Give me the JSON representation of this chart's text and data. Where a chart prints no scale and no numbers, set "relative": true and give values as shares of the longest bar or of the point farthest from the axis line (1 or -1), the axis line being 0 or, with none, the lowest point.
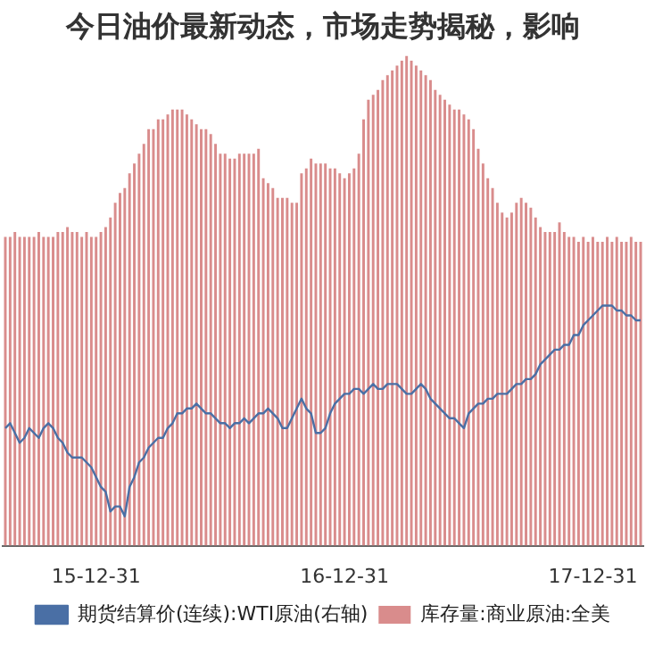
{
  "chart_data": {
    "type": "bar",
    "title": "今日油价最新动态，市场走势揭秘，影响",
    "relative": true,
    "grid": false,
    "legend": "bottom",
    "marker": "none",
    "categories": [
      null,
      null,
      null,
      null,
      null,
      null,
      null,
      null,
      null,
      null,
      null,
      null,
      null,
      null,
      null,
      null,
      null,
      null,
      null,
      "15-12-31",
      null,
      null,
      null,
      null,
      null,
      null,
      null,
      null,
      null,
      null,
      null,
      null,
      null,
      null,
      null,
      null,
      null,
      null,
      null,
      null,
      null,
      null,
      null,
      null,
      null,
      null,
      null,
      null,
      null,
      null,
      null,
      null,
      null,
      null,
      null,
      null,
      null,
      null,
      null,
      null,
      null,
      null,
      null,
      null,
      null,
      null,
      null,
      null,
      null,
      null,
      null,
      "16-12-31",
      null,
      null,
      null,
      null,
      null,
      null,
      null,
      null,
      null,
      null,
      null,
      null,
      null,
      null,
      null,
      null,
      null,
      null,
      null,
      null,
      null,
      null,
      null,
      null,
      null,
      null,
      null,
      null,
      null,
      null,
      null,
      null,
      null,
      null,
      null,
      null,
      null,
      null,
      null,
      null,
      null,
      null,
      null,
      null,
      null,
      null,
      null,
      null,
      null,
      null,
      null,
      "17-12-31",
      null,
      null,
      null,
      null,
      null,
      null,
      null,
      null,
      null,
      null
    ],
    "series": [
      {
        "name": "期货结算价(连续):WTI原油(右轴)",
        "type": "line",
        "color": "#4a6fa5",
        "values": [
          0.24,
          0.25,
          0.23,
          0.21,
          0.22,
          0.24,
          0.23,
          0.22,
          0.24,
          0.25,
          0.24,
          0.22,
          0.21,
          0.19,
          0.18,
          0.18,
          0.18,
          0.17,
          0.16,
          0.14,
          0.12,
          0.11,
          0.07,
          0.08,
          0.08,
          0.06,
          0.12,
          0.14,
          0.17,
          0.18,
          0.2,
          0.21,
          0.22,
          0.22,
          0.24,
          0.25,
          0.27,
          0.27,
          0.28,
          0.28,
          0.29,
          0.28,
          0.27,
          0.27,
          0.26,
          0.25,
          0.25,
          0.24,
          0.25,
          0.25,
          0.26,
          0.25,
          0.26,
          0.27,
          0.27,
          0.28,
          0.27,
          0.26,
          0.24,
          0.24,
          0.26,
          0.28,
          0.3,
          0.28,
          0.27,
          0.23,
          0.23,
          0.24,
          0.27,
          0.29,
          0.3,
          0.31,
          0.31,
          0.32,
          0.32,
          0.31,
          0.32,
          0.33,
          0.32,
          0.32,
          0.33,
          0.33,
          0.33,
          0.32,
          0.31,
          0.31,
          0.32,
          0.33,
          0.32,
          0.3,
          0.29,
          0.28,
          0.27,
          0.26,
          0.26,
          0.25,
          0.24,
          0.27,
          0.28,
          0.29,
          0.29,
          0.3,
          0.3,
          0.31,
          0.31,
          0.31,
          0.32,
          0.33,
          0.33,
          0.34,
          0.34,
          0.35,
          0.37,
          0.38,
          0.39,
          0.4,
          0.4,
          0.41,
          0.41,
          0.43,
          0.43,
          0.45,
          0.46,
          0.47,
          0.48,
          0.49,
          0.49,
          0.49,
          0.48,
          0.48,
          0.47,
          0.47,
          0.46,
          0.46
        ]
      },
      {
        "name": "库存量:商业原油:全美",
        "color": "#d98c8c",
        "values": [
          0.63,
          0.63,
          0.64,
          0.63,
          0.63,
          0.63,
          0.63,
          0.64,
          0.63,
          0.63,
          0.63,
          0.64,
          0.64,
          0.65,
          0.64,
          0.64,
          0.63,
          0.64,
          0.63,
          0.63,
          0.64,
          0.65,
          0.67,
          0.7,
          0.72,
          0.73,
          0.76,
          0.78,
          0.8,
          0.82,
          0.85,
          0.85,
          0.87,
          0.87,
          0.88,
          0.89,
          0.89,
          0.89,
          0.88,
          0.87,
          0.86,
          0.85,
          0.85,
          0.84,
          0.82,
          0.8,
          0.8,
          0.79,
          0.79,
          0.8,
          0.8,
          0.8,
          0.8,
          0.81,
          0.75,
          0.74,
          0.73,
          0.71,
          0.71,
          0.71,
          0.7,
          0.7,
          0.76,
          0.77,
          0.79,
          0.78,
          0.78,
          0.78,
          0.77,
          0.77,
          0.76,
          0.75,
          0.76,
          0.77,
          0.8,
          0.87,
          0.91,
          0.92,
          0.93,
          0.95,
          0.96,
          0.97,
          0.98,
          0.99,
          1,
          0.99,
          0.98,
          0.97,
          0.96,
          0.95,
          0.93,
          0.92,
          0.91,
          0.9,
          0.89,
          0.89,
          0.88,
          0.87,
          0.85,
          0.81,
          0.78,
          0.75,
          0.73,
          0.7,
          0.68,
          0.67,
          0.68,
          0.7,
          0.71,
          0.7,
          0.69,
          0.67,
          0.65,
          0.64,
          0.64,
          0.64,
          0.66,
          0.64,
          0.63,
          0.63,
          0.62,
          0.63,
          0.62,
          0.63,
          0.62,
          0.62,
          0.63,
          0.62,
          0.63,
          0.62,
          0.62,
          0.63,
          0.62,
          0.62
        ]
      }
    ]
  }
}
